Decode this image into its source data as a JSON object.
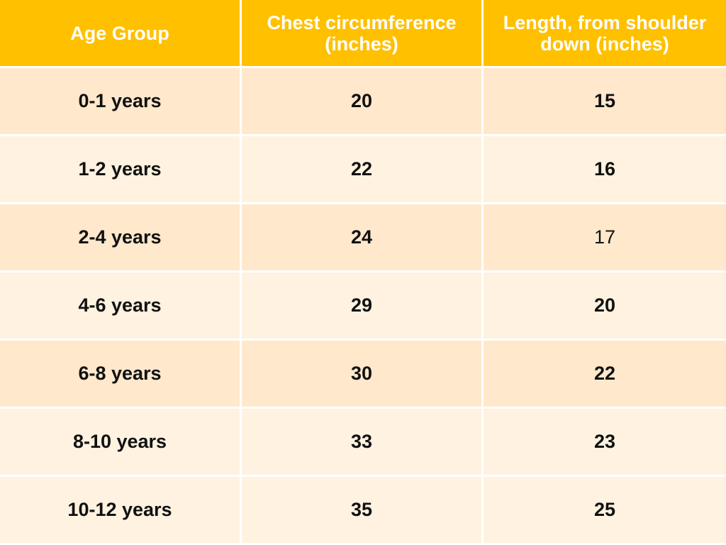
{
  "table": {
    "headers": [
      "Age Group",
      "Chest circumference (inches)",
      "Length, from shoulder down (inches)"
    ],
    "rows": [
      [
        "0-1 years",
        "20",
        "15"
      ],
      [
        "1-2 years",
        "22",
        "16"
      ],
      [
        "2-4 years",
        "24",
        "17"
      ],
      [
        "4-6 years",
        "29",
        "20"
      ],
      [
        "6-8 years",
        "30",
        "22"
      ],
      [
        "8-10 years",
        "33",
        "23"
      ],
      [
        "10-12 years",
        "35",
        "25"
      ]
    ]
  },
  "colors": {
    "header_background": "#ffc000",
    "header_text": "#ffffff",
    "row_shade_a": "#ffe8cc",
    "row_shade_b": "#fff2e0",
    "cell_text": "#111111"
  }
}
